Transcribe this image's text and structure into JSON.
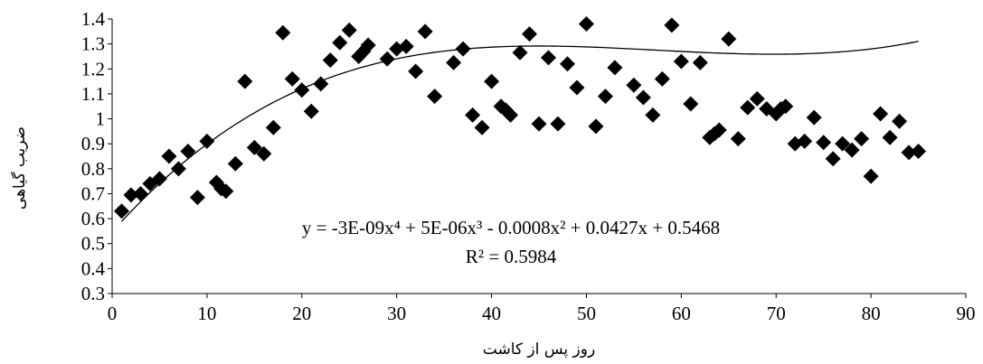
{
  "chart_data": {
    "type": "scatter",
    "xlabel": "روز پس از کاشت",
    "ylabel": "ضریب گیاهی",
    "xlim": [
      0,
      90
    ],
    "ylim": [
      0.3,
      1.4
    ],
    "x_ticks": [
      "0",
      "10",
      "20",
      "30",
      "40",
      "50",
      "60",
      "70",
      "80",
      "90"
    ],
    "y_ticks": [
      "0.3",
      "0.4",
      "0.5",
      "0.6",
      "0.7",
      "0.8",
      "0.9",
      "1",
      "1.1",
      "1.2",
      "1.3",
      "1.4"
    ],
    "grid": false,
    "legend": "none",
    "marker": "diamond",
    "marker_color": "#000000",
    "trendline": {
      "type": "polynomial",
      "order": 4,
      "coefficients": [
        -3e-09,
        5e-06,
        -0.0008,
        0.0427,
        0.5468
      ],
      "equation_text": "y = -3E-09x⁴ + 5E-06x³ - 0.0008x² + 0.0427x + 0.5468",
      "r2_text": "R² = 0.5984",
      "x_range": [
        1,
        85
      ]
    },
    "series": [
      {
        "points": [
          [
            1,
            0.63
          ],
          [
            2,
            0.695
          ],
          [
            3,
            0.7
          ],
          [
            4,
            0.74
          ],
          [
            5,
            0.76
          ],
          [
            6,
            0.85
          ],
          [
            7,
            0.8
          ],
          [
            8,
            0.87
          ],
          [
            9,
            0.685
          ],
          [
            10,
            0.91
          ],
          [
            11,
            0.745
          ],
          [
            11.5,
            0.72
          ],
          [
            12,
            0.71
          ],
          [
            13,
            0.82
          ],
          [
            14,
            1.15
          ],
          [
            15,
            0.885
          ],
          [
            16,
            0.86
          ],
          [
            17,
            0.965
          ],
          [
            18,
            1.345
          ],
          [
            19,
            1.16
          ],
          [
            20,
            1.115
          ],
          [
            21,
            1.03
          ],
          [
            22,
            1.14
          ],
          [
            23,
            1.235
          ],
          [
            24,
            1.305
          ],
          [
            25,
            1.355
          ],
          [
            26,
            1.25
          ],
          [
            26.5,
            1.27
          ],
          [
            27,
            1.295
          ],
          [
            29,
            1.24
          ],
          [
            30,
            1.28
          ],
          [
            31,
            1.29
          ],
          [
            32,
            1.19
          ],
          [
            33,
            1.35
          ],
          [
            34,
            1.09
          ],
          [
            36,
            1.225
          ],
          [
            37,
            1.28
          ],
          [
            38,
            1.015
          ],
          [
            39,
            0.965
          ],
          [
            40,
            1.15
          ],
          [
            41,
            1.05
          ],
          [
            41.5,
            1.035
          ],
          [
            42,
            1.015
          ],
          [
            43,
            1.265
          ],
          [
            44,
            1.34
          ],
          [
            45,
            0.98
          ],
          [
            46,
            1.245
          ],
          [
            47,
            0.98
          ],
          [
            48,
            1.22
          ],
          [
            49,
            1.125
          ],
          [
            50,
            1.38
          ],
          [
            51,
            0.97
          ],
          [
            52,
            1.09
          ],
          [
            53,
            1.205
          ],
          [
            55,
            1.135
          ],
          [
            56,
            1.085
          ],
          [
            57,
            1.015
          ],
          [
            58,
            1.16
          ],
          [
            59,
            1.375
          ],
          [
            60,
            1.23
          ],
          [
            61,
            1.06
          ],
          [
            62,
            1.225
          ],
          [
            63,
            0.925
          ],
          [
            63.5,
            0.94
          ],
          [
            64,
            0.955
          ],
          [
            65,
            1.32
          ],
          [
            66,
            0.92
          ],
          [
            67,
            1.045
          ],
          [
            68,
            1.08
          ],
          [
            69,
            1.04
          ],
          [
            70,
            1.02
          ],
          [
            70.5,
            1.04
          ],
          [
            71,
            1.05
          ],
          [
            72,
            0.9
          ],
          [
            73,
            0.91
          ],
          [
            74,
            1.005
          ],
          [
            75,
            0.905
          ],
          [
            76,
            0.84
          ],
          [
            77,
            0.9
          ],
          [
            78,
            0.875
          ],
          [
            79,
            0.92
          ],
          [
            80,
            0.77
          ],
          [
            81,
            1.02
          ],
          [
            82,
            0.925
          ],
          [
            83,
            0.99
          ],
          [
            84,
            0.865
          ],
          [
            85,
            0.87
          ]
        ]
      }
    ]
  }
}
